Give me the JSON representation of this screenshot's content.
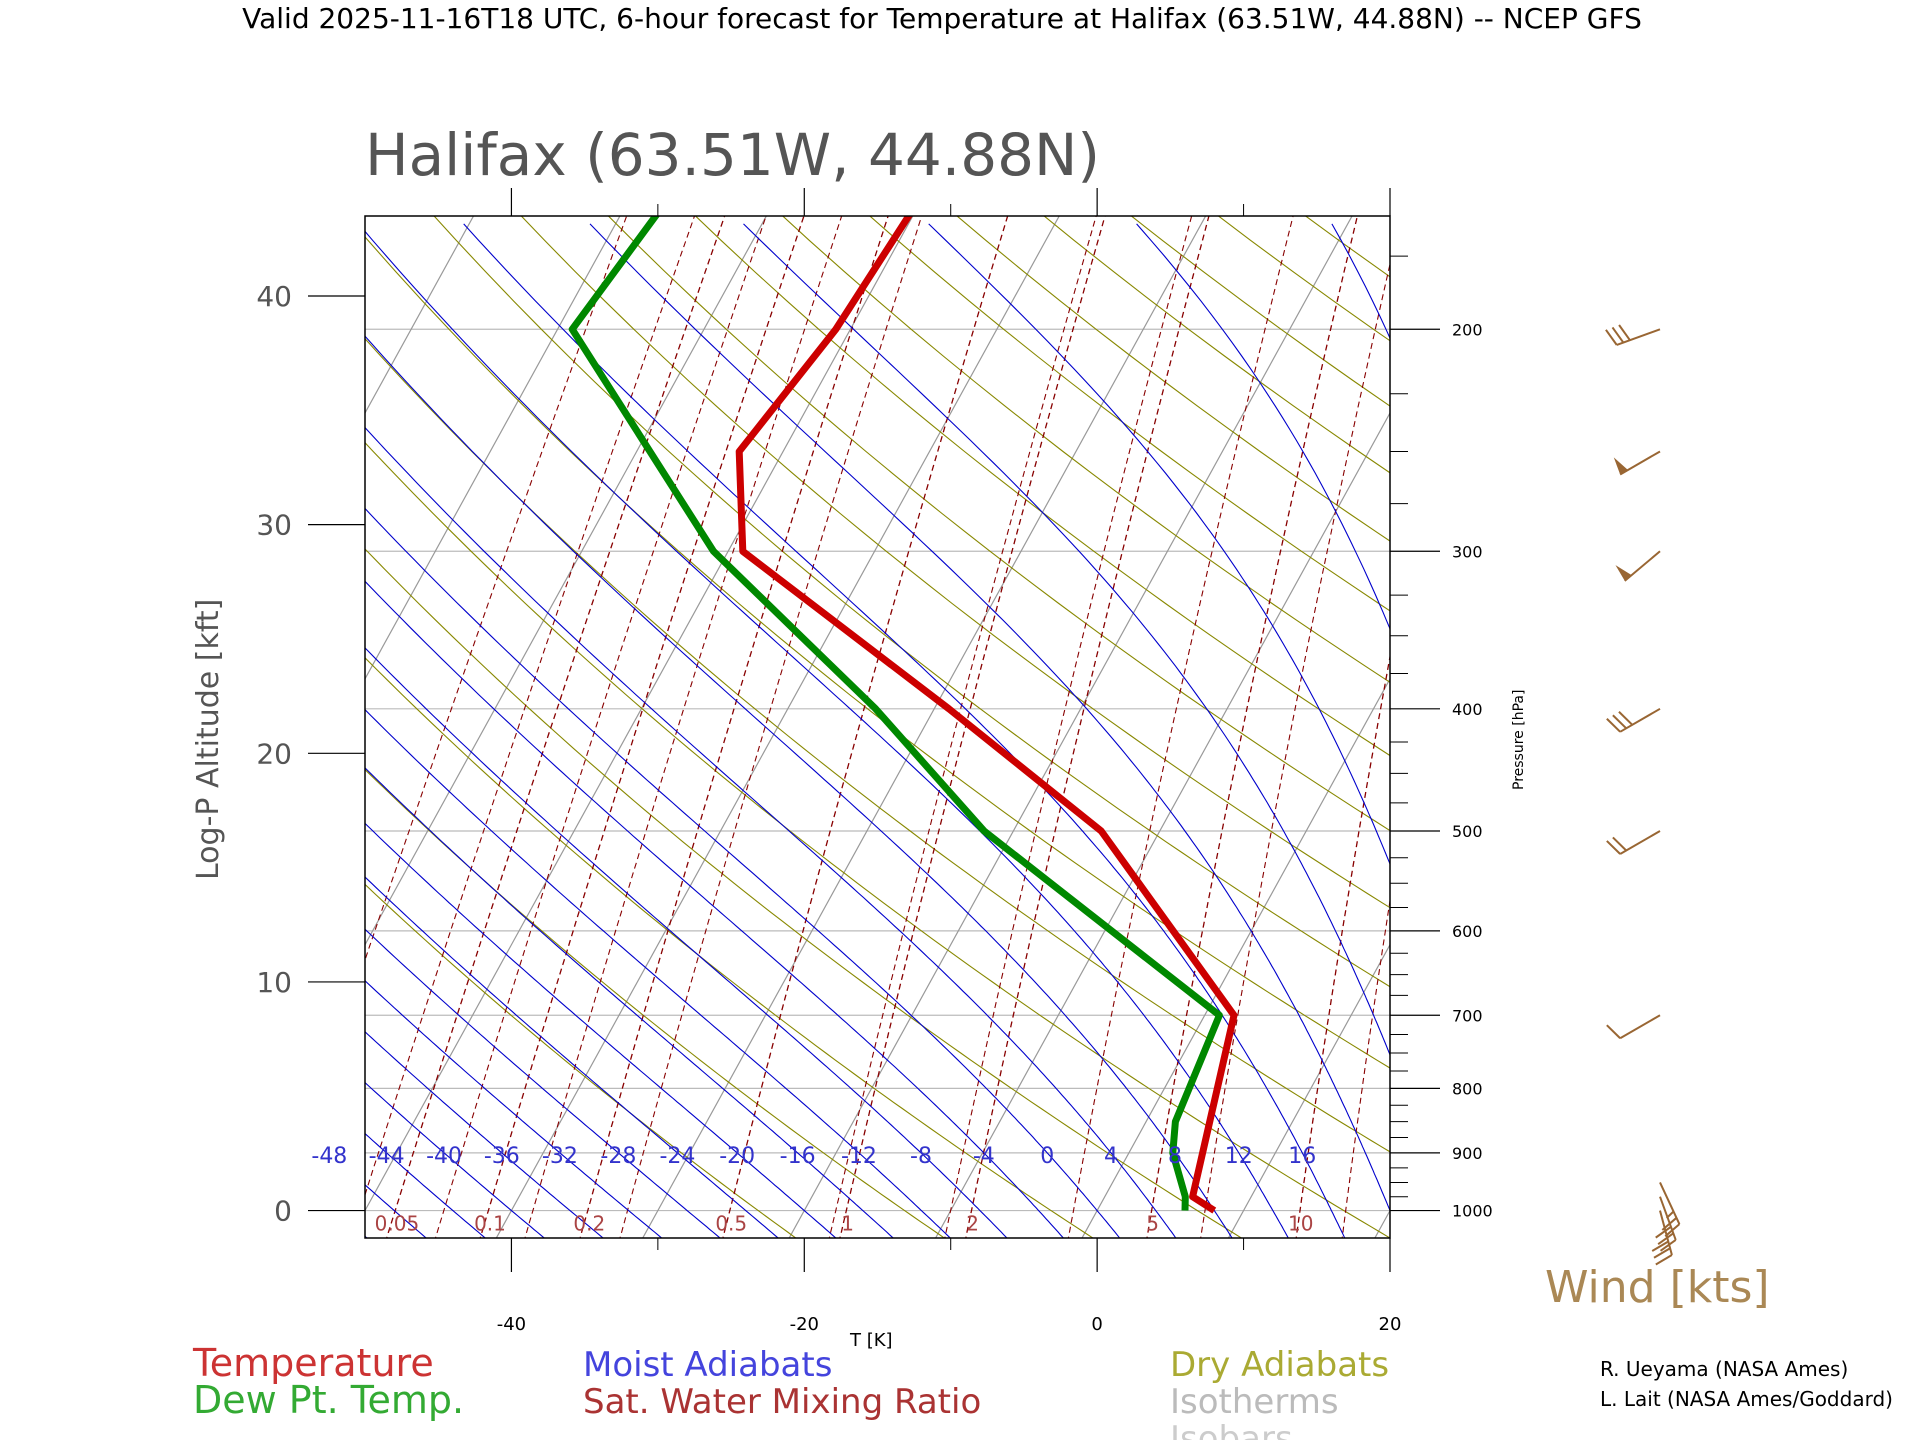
{
  "header": "Valid 2025-11-16T18 UTC, 6-hour forecast for Temperature at Halifax (63.51W, 44.88N) -- NCEP GFS",
  "plot_title": "Halifax (63.51W, 44.88N)",
  "credits": [
    "R. Ueyama (NASA Ames)",
    "L. Lait (NASA Ames/Goddard)"
  ],
  "colors": {
    "temperature": "#cc0000",
    "dewpoint": "#008800",
    "moist_adiabat": "#0000cc",
    "dry_adiabat": "#888800",
    "mixing_ratio": "#880000",
    "isotherm": "#999999",
    "isobar": "#bbbbbb",
    "wind": "#996633"
  },
  "chart_data": {
    "type": "line",
    "kind": "skew-T log-P sounding",
    "xlabel": "T [K]",
    "ylabel": "Log-P Altitude [kft]",
    "y2label": "Pressure [hPa]",
    "xlim": [
      -50,
      20
    ],
    "ylim": [
      -1.2,
      43.5
    ],
    "x_ticks": [
      -40,
      -20,
      0,
      20
    ],
    "y_ticks": [
      0,
      10,
      20,
      30,
      40
    ],
    "pressure_ticks": [
      1000,
      900,
      800,
      700,
      600,
      500,
      400,
      300,
      200
    ],
    "pressure_minor_ticks": [
      975,
      950,
      925,
      875,
      850,
      825,
      775,
      750,
      725,
      675,
      650,
      625,
      575,
      550,
      525,
      475,
      450,
      425,
      375,
      350,
      325,
      275,
      250,
      225,
      175,
      150
    ],
    "moist_adiabat_labels": [
      "-48",
      "-44",
      "-40",
      "-36",
      "-32",
      "-28",
      "-24",
      "-20",
      "-16",
      "-12",
      "-8",
      "-4",
      "0",
      "4",
      "8",
      "12",
      "16"
    ],
    "mixing_ratio_labels": [
      "0.05",
      "0.1",
      "0.2",
      "0.5",
      "1",
      "2",
      "5",
      "10"
    ],
    "mixing_ratio_values": [
      0.05,
      0.1,
      0.2,
      0.5,
      1,
      2,
      5,
      10
    ],
    "isotherms_C": [
      -120,
      -110,
      -100,
      -90,
      -80,
      -70,
      -60,
      -50,
      -40,
      -30,
      -20,
      -10,
      0,
      10,
      20,
      30,
      40
    ],
    "dry_adiabats_theta_K": [
      250,
      260,
      270,
      280,
      290,
      300,
      310,
      320,
      330,
      340,
      350,
      360,
      370,
      380,
      390,
      400,
      410,
      420,
      430,
      440,
      450,
      460,
      470,
      480,
      490,
      500
    ],
    "moist_adiabats_C": [
      -48,
      -44,
      -40,
      -36,
      -32,
      -28,
      -24,
      -20,
      -16,
      -12,
      -8,
      -4,
      0,
      4,
      8,
      12,
      16
    ],
    "series": [
      {
        "name": "Temperature",
        "pressure_hPa": [
          1000,
          975,
          700,
          500,
          400,
          300,
          250,
          200,
          150
        ],
        "temperature_C": [
          8,
          6,
          2,
          -14,
          -29,
          -49,
          -53,
          -51,
          -50
        ]
      },
      {
        "name": "Dew Pt. Temp.",
        "pressure_hPa": [
          1000,
          975,
          900,
          850,
          700,
          500,
          400,
          300,
          200,
          150
        ],
        "temperature_C": [
          6,
          5.5,
          3,
          2,
          1,
          -22,
          -34,
          -51,
          -69,
          -67
        ]
      }
    ],
    "wind": {
      "label": "Wind [kts]",
      "barbs": [
        {
          "pressure_hPa": 1000,
          "speed_kts": 30,
          "dir_deg": 165
        },
        {
          "pressure_hPa": 975,
          "speed_kts": 30,
          "dir_deg": 160
        },
        {
          "pressure_hPa": 950,
          "speed_kts": 25,
          "dir_deg": 155
        },
        {
          "pressure_hPa": 700,
          "speed_kts": 10,
          "dir_deg": 240
        },
        {
          "pressure_hPa": 500,
          "speed_kts": 20,
          "dir_deg": 240
        },
        {
          "pressure_hPa": 400,
          "speed_kts": 30,
          "dir_deg": 240
        },
        {
          "pressure_hPa": 300,
          "speed_kts": 50,
          "dir_deg": 230
        },
        {
          "pressure_hPa": 250,
          "speed_kts": 50,
          "dir_deg": 240
        },
        {
          "pressure_hPa": 200,
          "speed_kts": 30,
          "dir_deg": 250
        }
      ]
    },
    "legend": [
      {
        "label": "Temperature",
        "color": "#cc3333"
      },
      {
        "label": "Dew Pt. Temp.",
        "color": "#33aa33"
      },
      {
        "label": "Moist Adiabats",
        "color": "#4444dd"
      },
      {
        "label": "Sat. Water Mixing Ratio",
        "color": "#aa3333"
      },
      {
        "label": "Dry Adiabats",
        "color": "#aaaa33"
      },
      {
        "label": "Isotherms",
        "color": "#bbbbbb"
      },
      {
        "label": "Isobars",
        "color": "#cccccc"
      }
    ]
  }
}
